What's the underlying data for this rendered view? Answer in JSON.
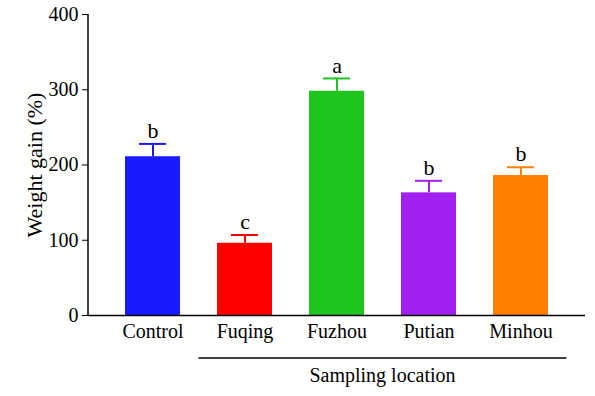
{
  "chart_data": {
    "type": "bar",
    "y_label": "Weight gain (%)",
    "x_label": "Sampling location",
    "categories": [
      "Control",
      "Fuqing",
      "Fuzhou",
      "Putian",
      "Minhou"
    ],
    "values": [
      211,
      96,
      298,
      163,
      186
    ],
    "errors": [
      17,
      11,
      17,
      16,
      11
    ],
    "letters": [
      "b",
      "c",
      "a",
      "b",
      "b"
    ],
    "colors": [
      "#1a1aff",
      "#ff0000",
      "#1fc41f",
      "#a020f0",
      "#ff8000"
    ],
    "ylim": [
      0,
      400
    ],
    "yticks": [
      0,
      100,
      200,
      300,
      400
    ],
    "grid": false
  }
}
